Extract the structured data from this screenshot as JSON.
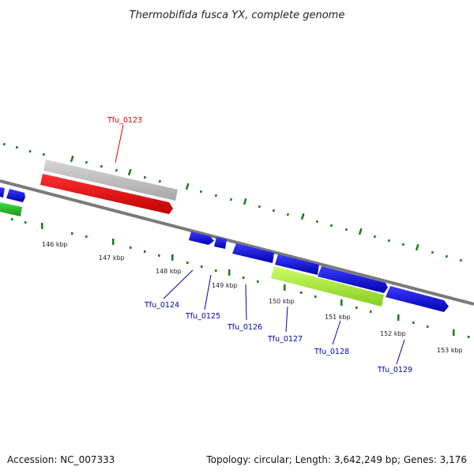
{
  "title": "Thermobifida fusca YX, complete genome",
  "footer": {
    "accession": "Accession: NC_007333",
    "summary": "Topology: circular; Length: 3,642,249 bp; Genes: 3,176"
  },
  "kbp_labels": [
    "146 kbp",
    "147 kbp",
    "148 kbp",
    "149 kbp",
    "150 kbp",
    "151 kbp",
    "152 kbp",
    "153 kbp"
  ],
  "gene_labels": {
    "tfu_0123": "Tfu_0123",
    "tfu_0124": "Tfu_0124",
    "tfu_0125": "Tfu_0125",
    "tfu_0126": "Tfu_0126",
    "tfu_0127": "Tfu_0127",
    "tfu_0128": "Tfu_0128",
    "tfu_0129": "Tfu_0129"
  },
  "colors": {
    "backbone": "#7a7a7a",
    "tick": "#1a7a1a",
    "forward_gene": "#0000ee",
    "reverse_gene": "#0000ee",
    "highlight_gene": "#ee0000",
    "highlight_feature": "#b8b8b8",
    "green_feature": "#22bb22",
    "lime_feature": "#aaee44",
    "red_label": "#dd0000",
    "blue_label": "#0000aa"
  }
}
